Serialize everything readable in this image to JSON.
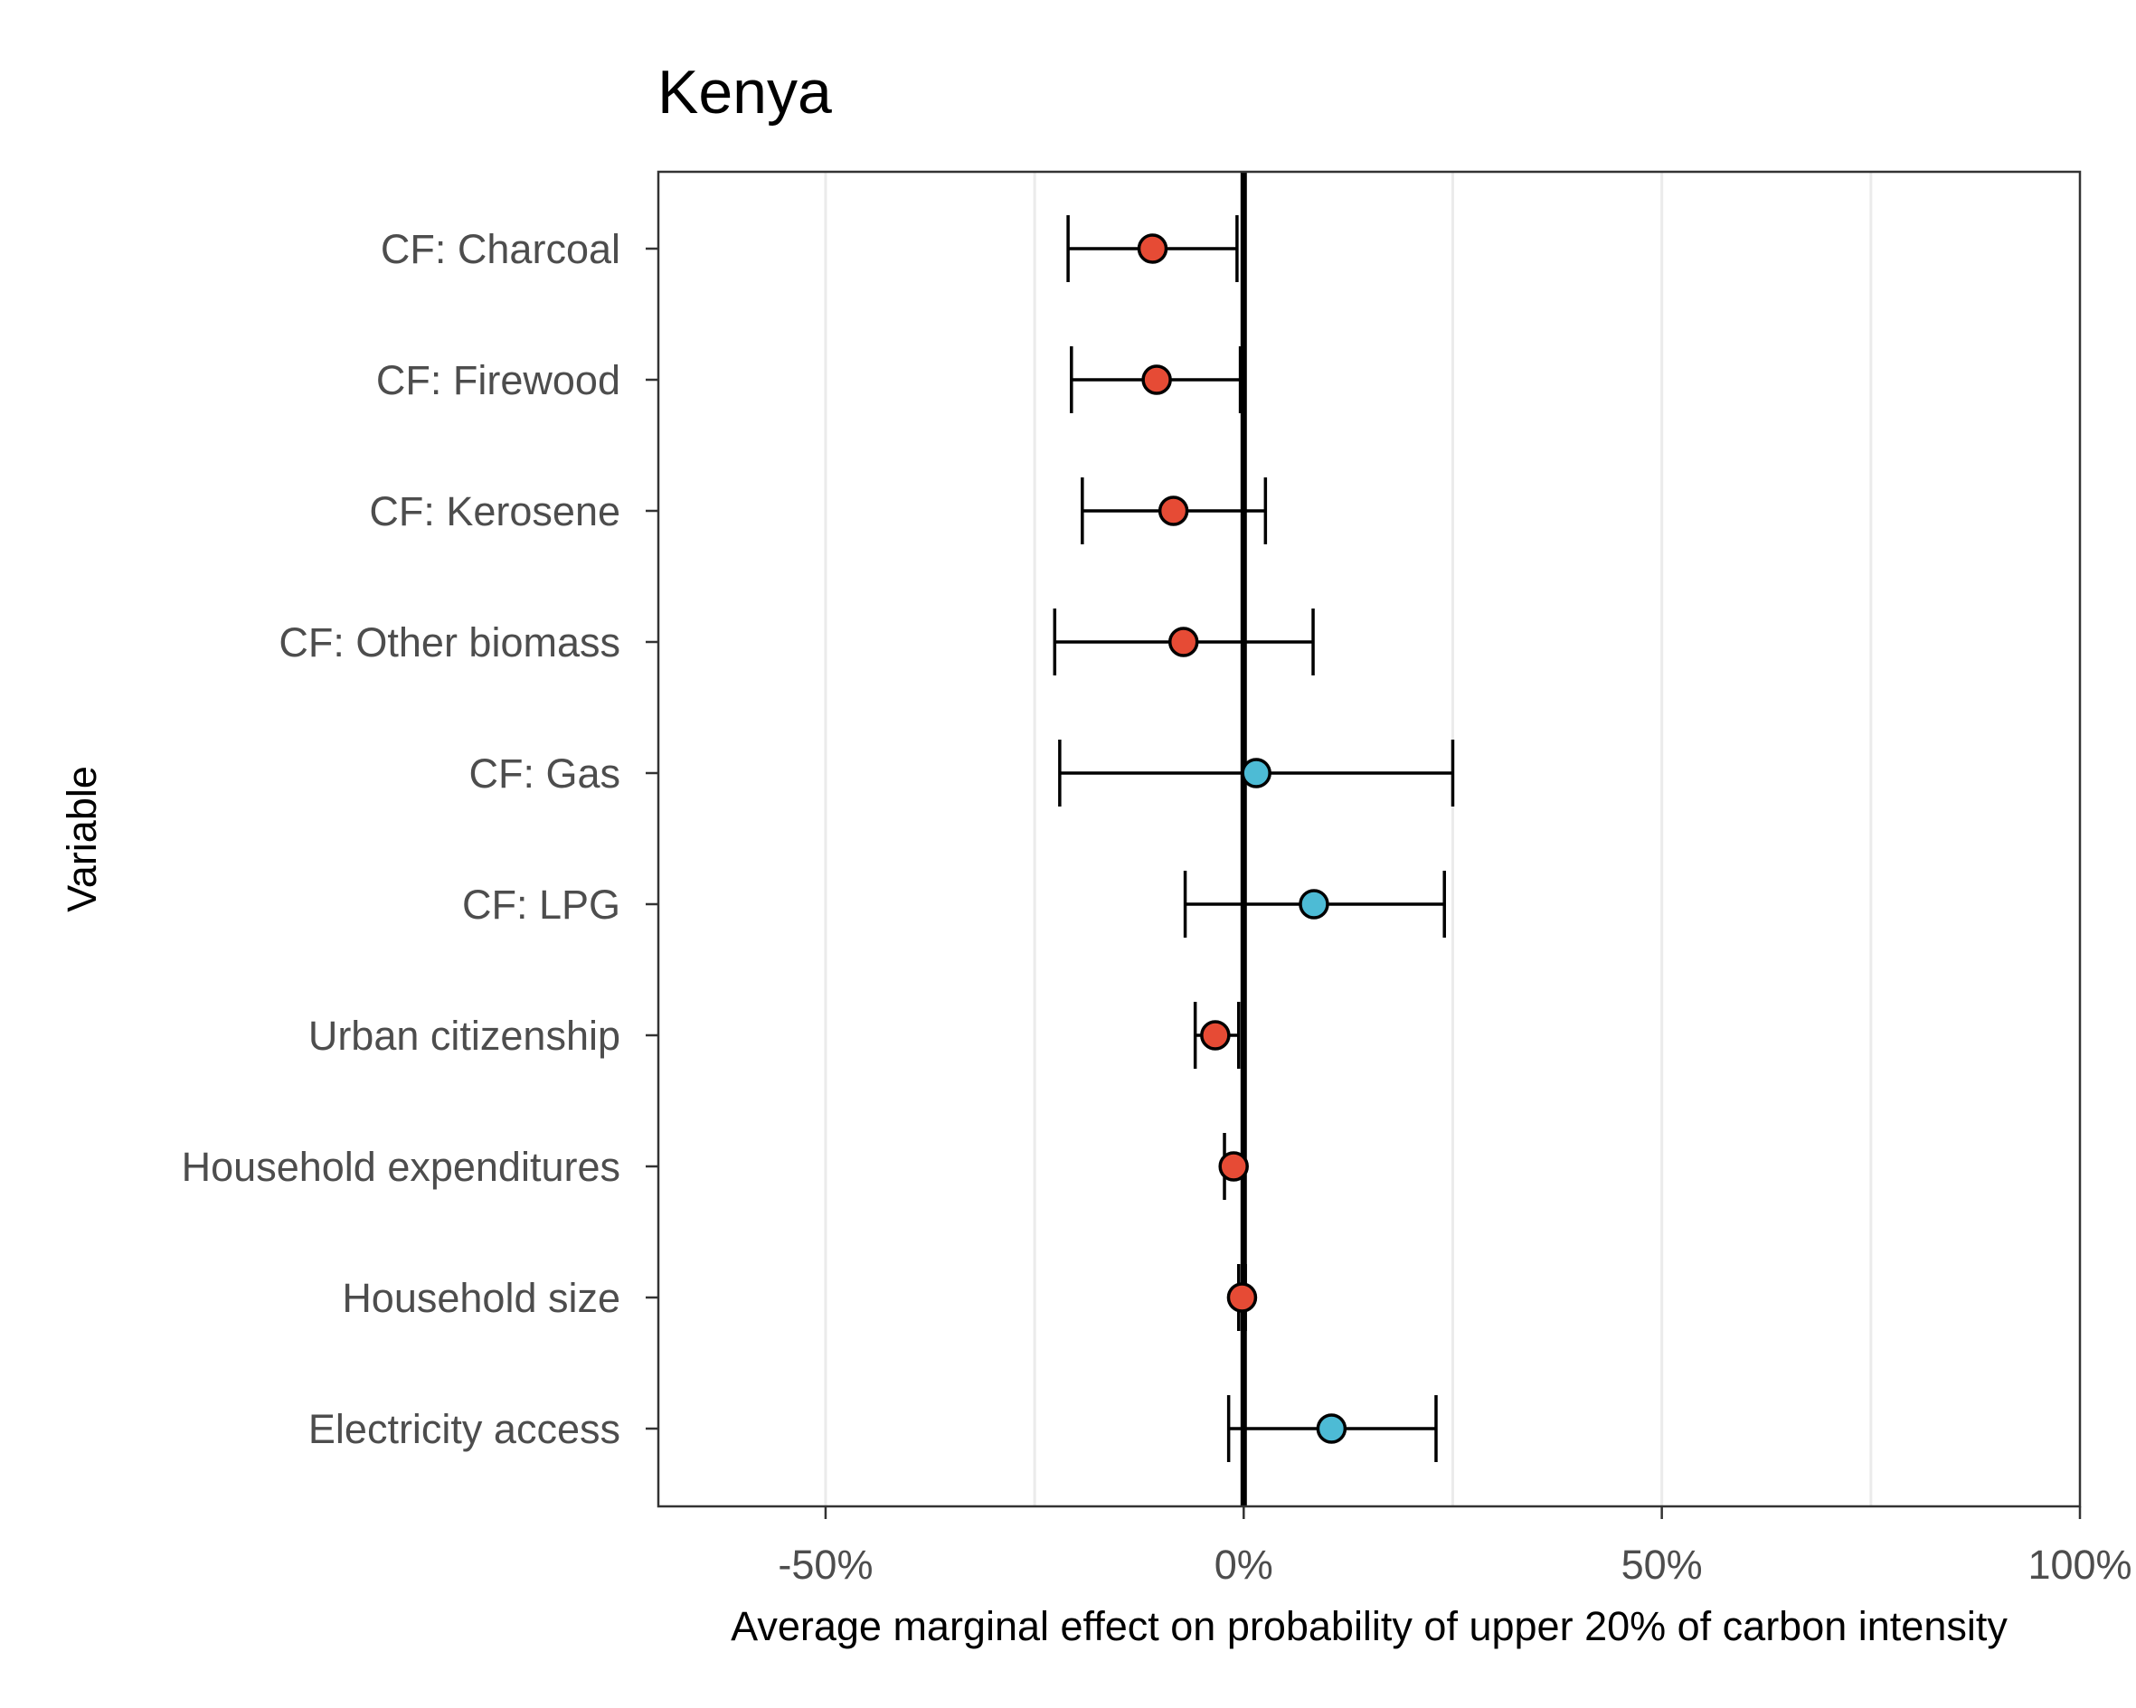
{
  "chart_data": {
    "type": "forest",
    "title": "Kenya",
    "xlabel": "Average marginal effect on probability of upper 20% of carbon intensity",
    "ylabel": "Variable",
    "xlim": [
      -70,
      100
    ],
    "xticks": [
      -50,
      0,
      50,
      100
    ],
    "xtick_labels": [
      "-50%",
      "0%",
      "50%",
      "100%"
    ],
    "minor_gridlines": [
      -25,
      25,
      75
    ],
    "reference_line": 0,
    "grid": true,
    "colors": {
      "negative": "#E64B35",
      "positive": "#4DBBD5",
      "gridline": "#EBEBEB",
      "axis": "#000000"
    },
    "series": [
      {
        "variable": "CF: Charcoal",
        "estimate": -10.9,
        "lower": -21.0,
        "upper": -0.8,
        "sign": "negative"
      },
      {
        "variable": "CF: Firewood",
        "estimate": -10.4,
        "lower": -20.6,
        "upper": -0.4,
        "sign": "negative"
      },
      {
        "variable": "CF: Kerosene",
        "estimate": -8.4,
        "lower": -19.3,
        "upper": 2.6,
        "sign": "negative"
      },
      {
        "variable": "CF: Other biomass",
        "estimate": -7.2,
        "lower": -22.6,
        "upper": 8.3,
        "sign": "negative"
      },
      {
        "variable": "CF: Gas",
        "estimate": 1.5,
        "lower": -22.0,
        "upper": 25.0,
        "sign": "positive"
      },
      {
        "variable": "CF: LPG",
        "estimate": 8.4,
        "lower": -7.0,
        "upper": 24.0,
        "sign": "positive"
      },
      {
        "variable": "Urban citizenship",
        "estimate": -3.4,
        "lower": -5.8,
        "upper": -0.6,
        "sign": "negative"
      },
      {
        "variable": "Household expenditures",
        "estimate": -1.2,
        "lower": -2.3,
        "upper": -0.1,
        "sign": "negative"
      },
      {
        "variable": "Household size",
        "estimate": -0.2,
        "lower": -0.6,
        "upper": 0.2,
        "sign": "negative"
      },
      {
        "variable": "Electricity access",
        "estimate": 10.5,
        "lower": -1.8,
        "upper": 23.0,
        "sign": "positive"
      }
    ]
  }
}
